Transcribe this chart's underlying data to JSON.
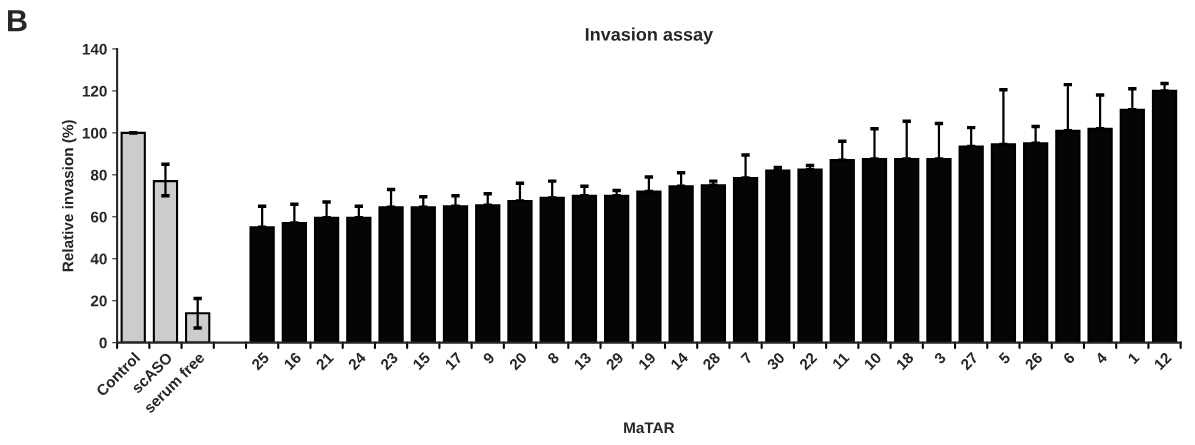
{
  "chart_data": {
    "type": "bar",
    "title": "Invasion assay",
    "xlabel": "MaTAR",
    "ylabel": "Relative invasion (%)",
    "annotations": [
      "B"
    ],
    "categories": [
      "Control",
      "scASO",
      "serum free",
      null,
      "25",
      "16",
      "21",
      "24",
      "23",
      "15",
      "17",
      "9",
      "20",
      "8",
      "13",
      "29",
      "19",
      "14",
      "28",
      "7",
      "30",
      "22",
      "11",
      "10",
      "18",
      "3",
      "27",
      "5",
      "26",
      "6",
      "4",
      "1",
      "12"
    ],
    "values": [
      100,
      77,
      14,
      null,
      55,
      57,
      59.5,
      59.5,
      64.5,
      64.5,
      65,
      65.5,
      67.5,
      69,
      70,
      70,
      72,
      74.5,
      75,
      78.5,
      82,
      82.5,
      87,
      87.5,
      87.5,
      87.5,
      93.5,
      94.5,
      95,
      101,
      102,
      111,
      120
    ],
    "errors": [
      0,
      [
        70,
        85
      ],
      [
        7,
        21
      ],
      null,
      [
        55,
        65
      ],
      [
        57,
        66
      ],
      [
        59.5,
        67
      ],
      [
        59.5,
        65
      ],
      [
        64.5,
        73
      ],
      [
        64.5,
        69.5
      ],
      [
        65,
        70
      ],
      [
        65.5,
        71
      ],
      [
        67.5,
        76
      ],
      [
        69,
        77
      ],
      [
        70,
        74.5
      ],
      [
        70,
        72.5
      ],
      [
        72,
        79
      ],
      [
        74.5,
        81
      ],
      [
        75,
        77
      ],
      [
        78.5,
        89.5
      ],
      [
        82,
        83.5
      ],
      [
        82.5,
        84.5
      ],
      [
        87,
        96
      ],
      [
        87.5,
        102
      ],
      [
        87.5,
        105.5
      ],
      [
        87.5,
        104.5
      ],
      [
        93.5,
        102.5
      ],
      [
        94.5,
        120.5
      ],
      [
        95,
        103
      ],
      [
        101,
        123
      ],
      [
        102,
        118
      ],
      [
        111,
        121
      ],
      [
        120,
        123.5
      ]
    ],
    "colors": [
      "#cccccc",
      "#cccccc",
      "#cccccc",
      "#050505",
      "#050505",
      "#050505",
      "#050505",
      "#050505",
      "#050505",
      "#050505",
      "#050505",
      "#050505",
      "#050505",
      "#050505",
      "#050505",
      "#050505",
      "#050505",
      "#050505",
      "#050505",
      "#050505",
      "#050505",
      "#050505",
      "#050505",
      "#050505",
      "#050505",
      "#050505",
      "#050505",
      "#050505",
      "#050505",
      "#050505",
      "#050505",
      "#050505",
      "#050505"
    ],
    "ylim": [
      0,
      140
    ],
    "yticks": [
      0,
      20,
      40,
      60,
      80,
      100,
      120,
      140
    ],
    "grid": false
  }
}
